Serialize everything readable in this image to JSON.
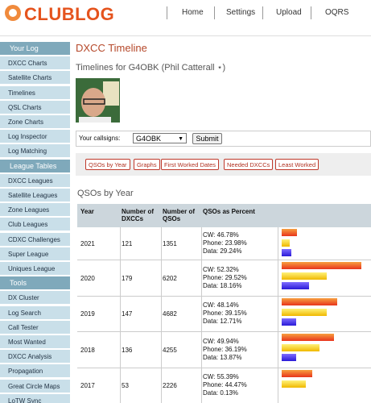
{
  "header": {
    "logo": "CLUBLOG",
    "nav": [
      "Home",
      "Settings",
      "Upload",
      "OQRS"
    ]
  },
  "sidebar": {
    "sections": [
      {
        "title": "Your Log",
        "items": [
          "DXCC Charts",
          "Satellite Charts",
          "Timelines",
          "QSL Charts",
          "Zone Charts",
          "Log Inspector",
          "Log Matching"
        ]
      },
      {
        "title": "League Tables",
        "items": [
          "DXCC Leagues",
          "Satellite Leagues",
          "Zone Leagues",
          "Club Leagues",
          "CDXC Challenges",
          "Super League",
          "Uniques League"
        ]
      },
      {
        "title": "Tools",
        "items": [
          "DX Cluster",
          "Log Search",
          "Call Tester",
          "Most Wanted",
          "DXCC Analysis",
          "Propagation",
          "Great Circle Maps",
          "LoTW Sync"
        ]
      }
    ]
  },
  "main": {
    "title": "DXCC Timeline",
    "subtitle": "Timelines for G4OBK (Phil Catterall ⋆)",
    "callsign_label": "Your callsigns:",
    "callsign": "G4OBK",
    "submit": "Submit",
    "tabs": [
      "QSOs by Year",
      "Graphs",
      "First Worked Dates",
      "Needed DXCCs",
      "Least Worked"
    ],
    "section_title": "QSOs by Year",
    "table": {
      "headers": [
        "Year",
        "Number of DXCCs",
        "Number of QSOs",
        "QSOs as Percent"
      ],
      "rows": [
        {
          "year": 2021,
          "dxccs": 121,
          "qsos": 1351,
          "cw": {
            "value": 46.78,
            "label": "CW: 46.78%"
          },
          "phone": {
            "value": 23.98,
            "label": "Phone: 23.98%"
          },
          "data": {
            "value": 29.24,
            "label": "Data: 29.24%"
          }
        },
        {
          "year": 2020,
          "dxccs": 179,
          "qsos": 6202,
          "cw": {
            "value": 52.32,
            "label": "CW: 52.32%"
          },
          "phone": {
            "value": 29.52,
            "label": "Phone: 29.52%"
          },
          "data": {
            "value": 18.16,
            "label": "Data: 18.16%"
          }
        },
        {
          "year": 2019,
          "dxccs": 147,
          "qsos": 4682,
          "cw": {
            "value": 48.14,
            "label": "CW: 48.14%"
          },
          "phone": {
            "value": 39.15,
            "label": "Phone: 39.15%"
          },
          "data": {
            "value": 12.71,
            "label": "Data: 12.71%"
          }
        },
        {
          "year": 2018,
          "dxccs": 136,
          "qsos": 4255,
          "cw": {
            "value": 49.94,
            "label": "CW: 49.94%"
          },
          "phone": {
            "value": 36.19,
            "label": "Phone: 36.19%"
          },
          "data": {
            "value": 13.87,
            "label": "Data: 13.87%"
          }
        },
        {
          "year": 2017,
          "dxccs": 53,
          "qsos": 2226,
          "cw": {
            "value": 55.39,
            "label": "CW: 55.39%"
          },
          "phone": {
            "value": 44.47,
            "label": "Phone: 44.47%"
          },
          "data": {
            "value": 0.13,
            "label": "Data: 0.13%"
          }
        }
      ]
    }
  }
}
